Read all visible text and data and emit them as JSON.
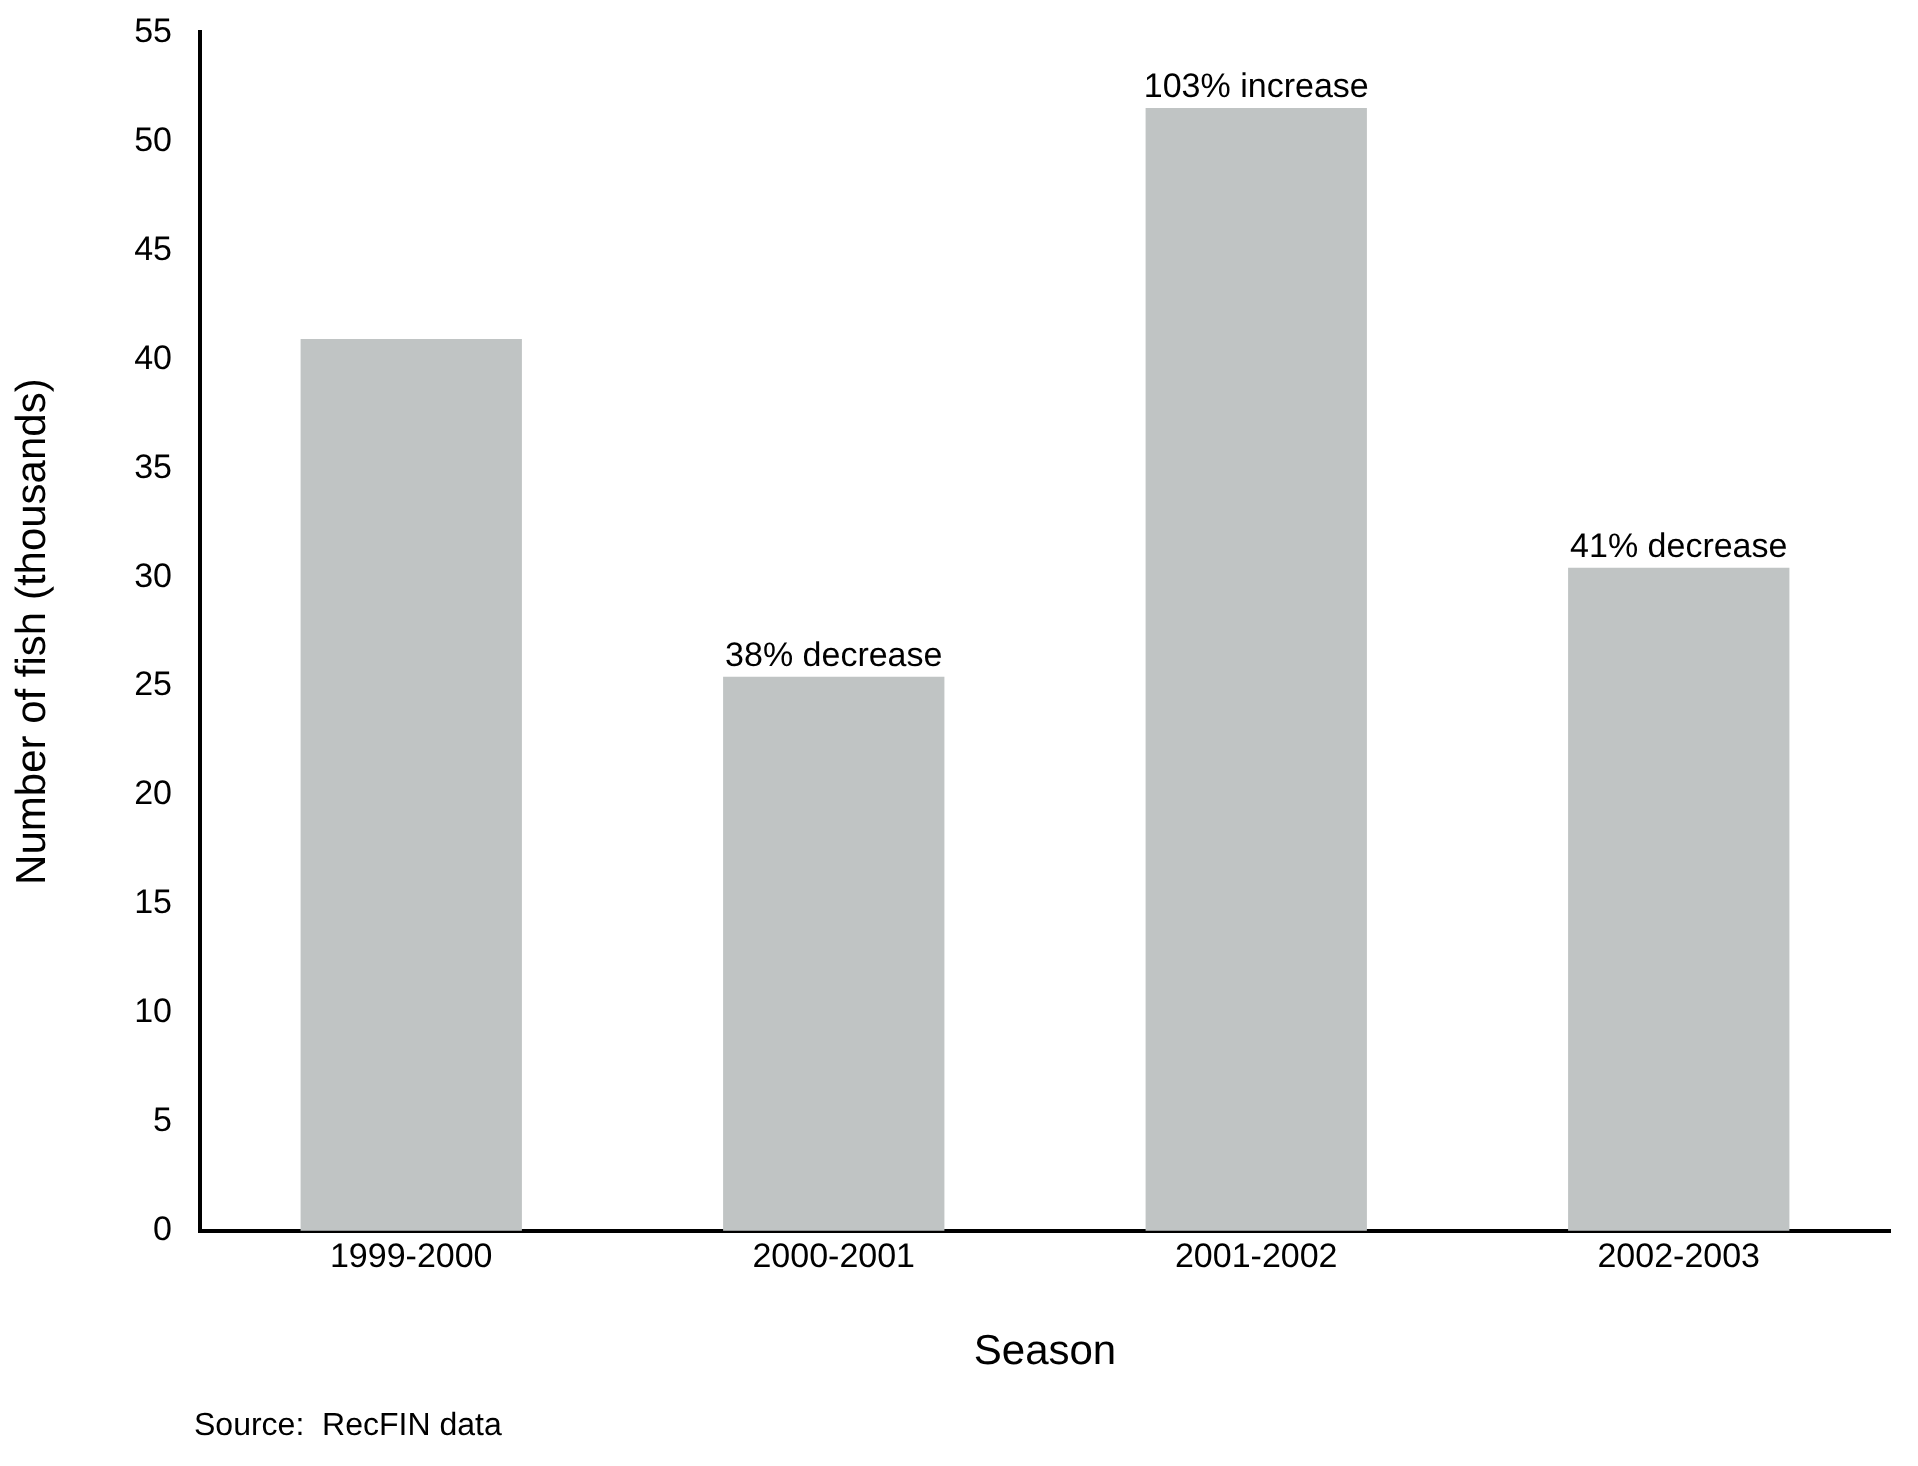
{
  "chart_data": {
    "type": "bar",
    "categories": [
      "1999-2000",
      "2000-2001",
      "2001-2002",
      "2002-2003"
    ],
    "values": [
      40.9,
      25.4,
      51.5,
      30.4
    ],
    "color": "#c0c4c4",
    "xlabel": "Season",
    "ylabel": "Number of fish (thousands)",
    "ylim": [
      0,
      55
    ],
    "yticks": [
      0,
      5,
      10,
      15,
      20,
      25,
      30,
      35,
      40,
      45,
      50,
      55
    ],
    "grid": false,
    "legend": false,
    "annotations": [
      {
        "text": "38% decrease",
        "x": "2000-2001",
        "y": 25.4
      },
      {
        "text": "103% increase",
        "x": "2001-2002",
        "y": 51.5
      },
      {
        "text": "41% decrease",
        "x": "2002-2003",
        "y": 30.4
      },
      "Source:  RecFIN data"
    ]
  }
}
